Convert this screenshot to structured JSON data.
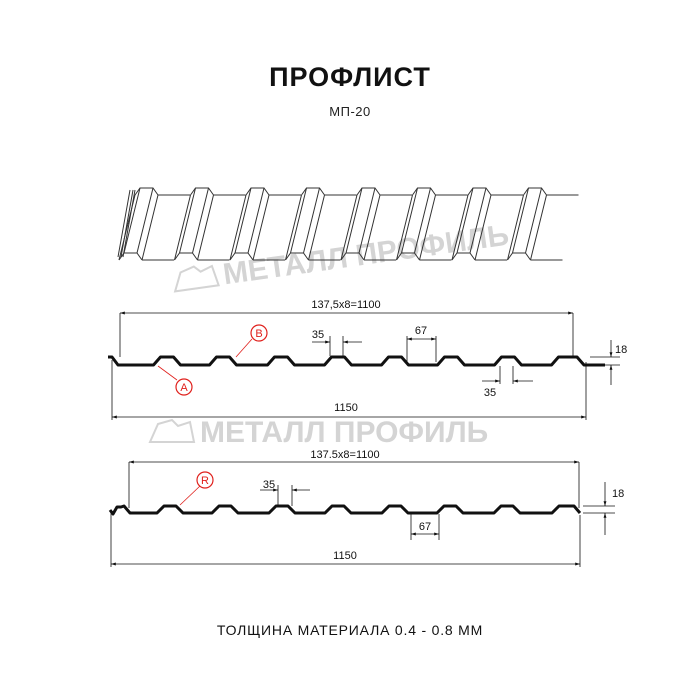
{
  "header": {
    "title": "ПРОФЛИСТ",
    "subtitle": "МП-20"
  },
  "watermark": {
    "text": "МЕТАЛЛ ПРОФИЛЬ",
    "color": "#d4d4d4"
  },
  "profile_1": {
    "pitch_label": "137,5x8=1100",
    "width_label": "1150",
    "crest_width_label": "35",
    "valley_top_label": "67",
    "bottom_crest_label": "35",
    "height_label": "18",
    "marker_b": "B",
    "marker_a": "A"
  },
  "profile_2": {
    "pitch_label": "137.5x8=1100",
    "width_label": "1150",
    "crest_width_label": "35",
    "valley_label": "67",
    "height_label": "18",
    "marker_r": "R"
  },
  "footer": {
    "text": "ТОЛЩИНА МАТЕРИАЛА 0.4 - 0.8 ММ"
  },
  "colors": {
    "line": "#111111",
    "marker": "#e0201c"
  }
}
